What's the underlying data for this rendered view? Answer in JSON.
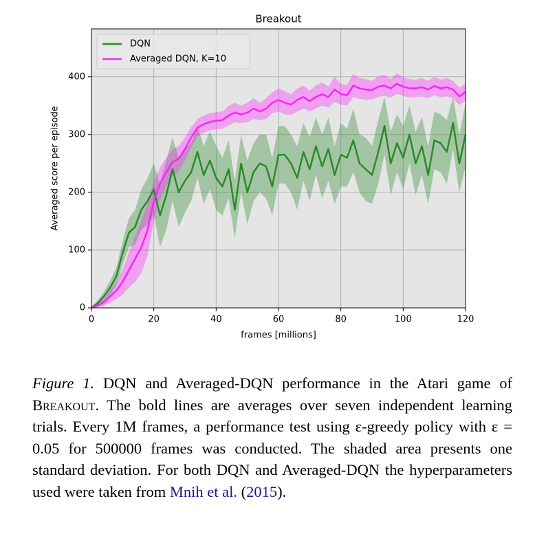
{
  "chart_data": {
    "type": "line",
    "title": "Breakout",
    "x_label": "frames [millions]",
    "y_label": "Averaged score per episode",
    "xlim": [
      0,
      120
    ],
    "ylim": [
      0,
      483
    ],
    "xticks": [
      0,
      20,
      40,
      60,
      80,
      100,
      120
    ],
    "yticks": [
      0,
      100,
      200,
      300,
      400
    ],
    "grid": true,
    "legend": "upper left",
    "x": [
      0,
      2,
      4,
      6,
      8,
      10,
      12,
      14,
      16,
      18,
      20,
      22,
      24,
      26,
      28,
      30,
      32,
      34,
      36,
      38,
      40,
      42,
      44,
      46,
      48,
      50,
      52,
      54,
      56,
      58,
      60,
      62,
      64,
      66,
      68,
      70,
      72,
      74,
      76,
      78,
      80,
      82,
      84,
      86,
      88,
      90,
      92,
      94,
      96,
      98,
      100,
      102,
      104,
      106,
      108,
      110,
      112,
      114,
      116,
      118,
      120
    ],
    "series": [
      {
        "name": "DQN",
        "color": "#2a8a2a",
        "values": [
          0,
          8,
          20,
          35,
          55,
          95,
          130,
          140,
          170,
          185,
          205,
          160,
          195,
          240,
          200,
          220,
          235,
          270,
          230,
          255,
          225,
          210,
          240,
          170,
          250,
          200,
          235,
          250,
          245,
          210,
          265,
          265,
          250,
          225,
          270,
          240,
          280,
          245,
          275,
          230,
          265,
          260,
          290,
          250,
          240,
          230,
          270,
          315,
          250,
          285,
          260,
          300,
          250,
          280,
          230,
          290,
          285,
          270,
          320,
          250,
          300
        ],
        "lower": [
          0,
          3,
          12,
          23,
          40,
          75,
          105,
          110,
          135,
          145,
          160,
          105,
          135,
          185,
          140,
          165,
          185,
          225,
          180,
          205,
          170,
          160,
          190,
          120,
          200,
          145,
          185,
          200,
          190,
          160,
          215,
          215,
          200,
          170,
          220,
          185,
          230,
          190,
          220,
          180,
          210,
          210,
          235,
          200,
          185,
          180,
          215,
          265,
          195,
          235,
          205,
          250,
          195,
          230,
          180,
          240,
          235,
          215,
          275,
          200,
          245
        ],
        "upper": [
          2,
          13,
          28,
          47,
          70,
          115,
          155,
          170,
          205,
          225,
          250,
          215,
          255,
          295,
          260,
          275,
          285,
          315,
          280,
          305,
          280,
          260,
          290,
          220,
          300,
          255,
          285,
          300,
          300,
          260,
          315,
          315,
          300,
          280,
          320,
          295,
          330,
          300,
          330,
          280,
          320,
          310,
          345,
          300,
          295,
          280,
          325,
          365,
          305,
          335,
          315,
          350,
          305,
          330,
          280,
          340,
          335,
          325,
          365,
          300,
          355
        ]
      },
      {
        "name": "Averaged DQN, K=10",
        "color": "#ff22ff",
        "values": [
          0,
          4,
          10,
          20,
          30,
          45,
          65,
          85,
          105,
          135,
          185,
          215,
          235,
          252,
          258,
          275,
          295,
          312,
          318,
          322,
          324,
          325,
          333,
          338,
          335,
          338,
          345,
          340,
          345,
          355,
          360,
          355,
          352,
          360,
          365,
          358,
          365,
          370,
          365,
          378,
          370,
          368,
          385,
          380,
          378,
          377,
          383,
          385,
          380,
          388,
          383,
          380,
          380,
          382,
          378,
          384,
          380,
          382,
          378,
          366,
          374
        ],
        "lower": [
          0,
          1,
          4,
          10,
          15,
          23,
          35,
          45,
          60,
          90,
          150,
          187,
          210,
          230,
          236,
          255,
          277,
          297,
          303,
          307,
          309,
          310,
          316,
          321,
          320,
          321,
          327,
          325,
          327,
          337,
          340,
          335,
          334,
          340,
          345,
          340,
          345,
          350,
          347,
          356,
          352,
          350,
          365,
          362,
          360,
          361,
          365,
          367,
          364,
          370,
          367,
          364,
          365,
          366,
          363,
          368,
          365,
          366,
          363,
          351,
          359
        ],
        "upper": [
          2,
          7,
          16,
          30,
          45,
          67,
          95,
          125,
          150,
          180,
          220,
          243,
          260,
          274,
          280,
          295,
          313,
          327,
          333,
          337,
          339,
          340,
          350,
          355,
          350,
          355,
          363,
          355,
          363,
          373,
          380,
          375,
          370,
          380,
          385,
          376,
          385,
          390,
          383,
          400,
          388,
          386,
          405,
          398,
          396,
          393,
          401,
          403,
          396,
          406,
          399,
          396,
          395,
          398,
          393,
          400,
          395,
          398,
          393,
          381,
          389
        ]
      }
    ]
  },
  "caption": {
    "label": "Figure 1.",
    "text_1": "DQN and Averaged-DQN performance in the Atari game of",
    "game": "Breakout",
    "text_2": ". The bold lines are averages over seven independent learning trials. Every 1M frames, a performance test using ε-greedy policy with ε = 0.05 for 500000 frames was conducted. The shaded area presents one standard deviation. For both DQN and Averaged-DQN the hyperparameters used were taken from",
    "cite_author": "Mnih et al.",
    "open": "(",
    "cite_year": "2015",
    "close": ")."
  }
}
